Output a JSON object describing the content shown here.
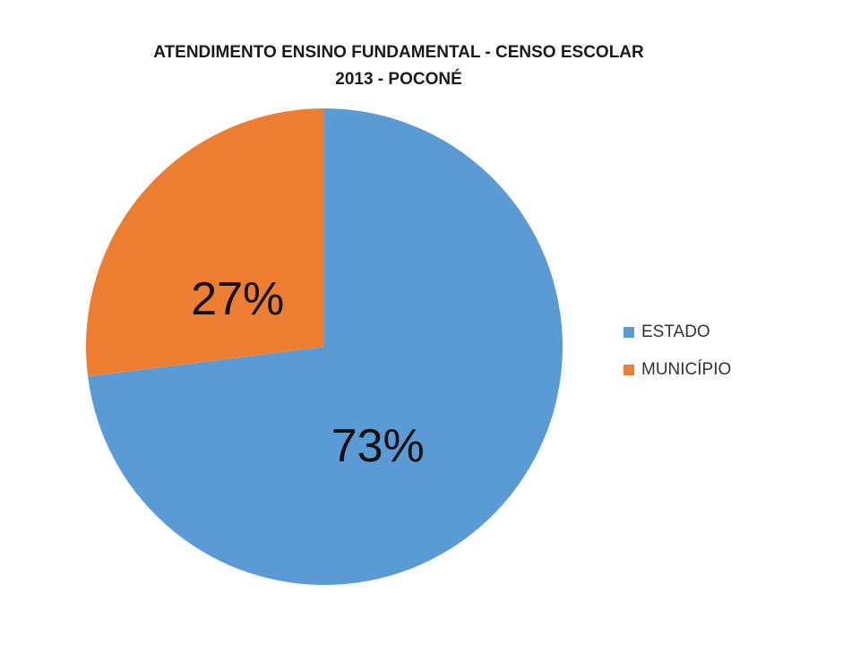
{
  "chart_data": {
    "type": "pie",
    "title_line1": "ATENDIMENTO ENSINO FUNDAMENTAL -  CENSO ESCOLAR",
    "title_line2": "2013 - POCONÉ",
    "categories": [
      "ESTADO",
      "MUNICÍPIO"
    ],
    "values": [
      73,
      27
    ],
    "data_labels": [
      "73%",
      "27%"
    ],
    "colors": [
      "#5B9BD5",
      "#ED7D31"
    ],
    "legend_position": "right",
    "start_angle": "top",
    "direction": "clockwise"
  }
}
